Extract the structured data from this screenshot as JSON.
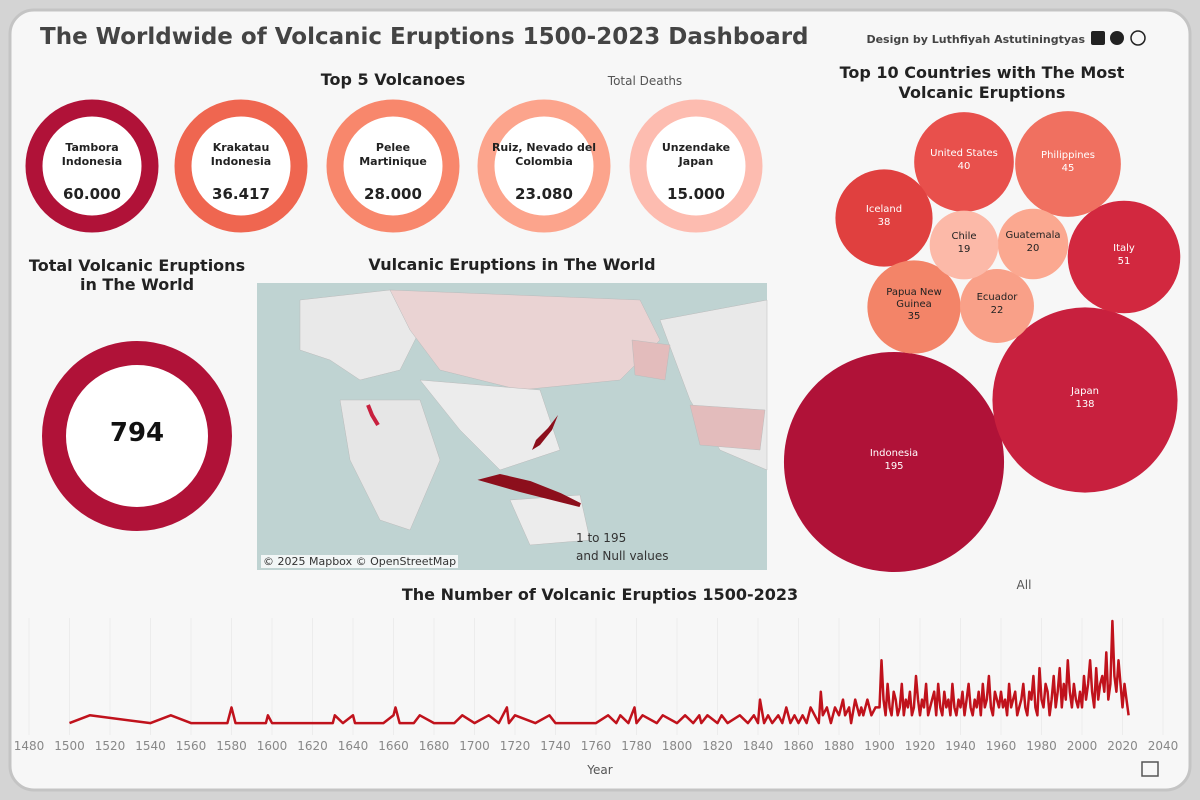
{
  "header": {
    "title": "The Worldwide of Volcanic Eruptions 1500-2023 Dashboard",
    "credit": "Design by Luthfiyah Astutiningtyas"
  },
  "chart_data": [
    {
      "type": "donut-cards",
      "title": "Top 5 Volcanoes",
      "subtitle": "Total Deaths",
      "categories": [
        "Tambora",
        "Krakatau",
        "Pelee",
        "Ruiz, Nevado del",
        "Unzendake"
      ],
      "countries": [
        "Indonesia",
        "Indonesia",
        "Martinique",
        "Colombia",
        "Japan"
      ],
      "values": [
        60000,
        36417,
        28000,
        23080,
        15000
      ],
      "value_labels": [
        "60.000",
        "36.417",
        "28.000",
        "23.080",
        "15.000"
      ],
      "colors": [
        "#b01238",
        "#ef6650",
        "#f8876c",
        "#fca48c",
        "#fdbcb0"
      ]
    },
    {
      "type": "kpi",
      "title": "Total Volcanic Eruptions in The World",
      "value": 794,
      "color": "#b01238"
    },
    {
      "type": "map",
      "title": "Vulcanic Eruptions in The World",
      "legend_labels": [
        "1 to 195",
        "and Null values"
      ],
      "attribution": "© 2025 Mapbox © OpenStreetMap"
    },
    {
      "type": "bubble",
      "title": "Top 10 Countries with The Most Volcanic Eruptions",
      "categories": [
        "Indonesia",
        "Japan",
        "Italy",
        "Philippines",
        "United States",
        "Iceland",
        "Papua New Guinea",
        "Ecuador",
        "Guatemala",
        "Chile"
      ],
      "values": [
        195,
        138,
        51,
        45,
        40,
        38,
        35,
        22,
        20,
        19
      ],
      "colors": [
        "#b01238",
        "#c8203e",
        "#d2283f",
        "#f07060",
        "#e8504c",
        "#e0403f",
        "#f38468",
        "#f9a088",
        "#fba890",
        "#fcb9a8"
      ]
    },
    {
      "type": "line",
      "title": "The Number of Volcanic Eruptios 1500-2023",
      "x_label": "Year",
      "filter_label": "All",
      "color": "#c0121c",
      "xlim": [
        1480,
        2040
      ],
      "xticks": [
        1480,
        1500,
        1520,
        1540,
        1560,
        1580,
        1600,
        1620,
        1640,
        1660,
        1680,
        1700,
        1720,
        1740,
        1760,
        1780,
        1800,
        1820,
        1840,
        1860,
        1880,
        1900,
        1920,
        1940,
        1960,
        1980,
        2000,
        2020,
        2040
      ],
      "ylim": [
        0,
        14
      ],
      "x": [
        1500,
        1510,
        1540,
        1550,
        1560,
        1570,
        1578,
        1580,
        1582,
        1595,
        1597,
        1598,
        1600,
        1620,
        1630,
        1631,
        1635,
        1640,
        1641,
        1650,
        1655,
        1660,
        1661,
        1663,
        1670,
        1673,
        1680,
        1690,
        1694,
        1700,
        1707,
        1712,
        1716,
        1717,
        1720,
        1730,
        1737,
        1740,
        1750,
        1760,
        1766,
        1770,
        1772,
        1776,
        1779,
        1780,
        1783,
        1790,
        1793,
        1800,
        1804,
        1808,
        1811,
        1812,
        1815,
        1820,
        1822,
        1825,
        1831,
        1835,
        1838,
        1840,
        1841,
        1843,
        1845,
        1847,
        1850,
        1852,
        1854,
        1856,
        1858,
        1860,
        1862,
        1864,
        1866,
        1868,
        1870,
        1871,
        1872,
        1874,
        1876,
        1878,
        1880,
        1882,
        1883,
        1885,
        1886,
        1888,
        1890,
        1891,
        1892,
        1894,
        1896,
        1898,
        1900,
        1901,
        1902,
        1903,
        1904,
        1905,
        1906,
        1907,
        1908,
        1909,
        1910,
        1911,
        1912,
        1913,
        1914,
        1915,
        1916,
        1917,
        1918,
        1919,
        1920,
        1921,
        1922,
        1923,
        1924,
        1925,
        1926,
        1927,
        1928,
        1929,
        1930,
        1931,
        1932,
        1933,
        1934,
        1935,
        1936,
        1937,
        1938,
        1939,
        1940,
        1941,
        1942,
        1943,
        1944,
        1945,
        1946,
        1947,
        1948,
        1949,
        1950,
        1951,
        1952,
        1953,
        1954,
        1955,
        1956,
        1957,
        1958,
        1959,
        1960,
        1961,
        1962,
        1963,
        1964,
        1965,
        1966,
        1967,
        1968,
        1969,
        1970,
        1971,
        1972,
        1973,
        1974,
        1975,
        1976,
        1977,
        1978,
        1979,
        1980,
        1981,
        1982,
        1983,
        1984,
        1985,
        1986,
        1987,
        1988,
        1989,
        1990,
        1991,
        1992,
        1993,
        1994,
        1995,
        1996,
        1997,
        1998,
        1999,
        2000,
        2001,
        2002,
        2003,
        2004,
        2005,
        2006,
        2007,
        2008,
        2009,
        2010,
        2011,
        2012,
        2013,
        2014,
        2015,
        2016,
        2017,
        2018,
        2019,
        2020,
        2021,
        2022,
        2023
      ],
      "values": [
        1,
        2,
        1,
        2,
        1,
        1,
        1,
        3,
        1,
        1,
        1,
        2,
        1,
        1,
        1,
        2,
        1,
        2,
        1,
        1,
        1,
        2,
        3,
        1,
        1,
        2,
        1,
        1,
        2,
        1,
        2,
        1,
        3,
        1,
        2,
        1,
        2,
        1,
        1,
        1,
        2,
        1,
        2,
        1,
        3,
        1,
        2,
        1,
        2,
        1,
        2,
        1,
        2,
        1,
        2,
        1,
        2,
        1,
        2,
        1,
        2,
        1,
        4,
        1,
        2,
        1,
        2,
        1,
        3,
        1,
        2,
        1,
        2,
        1,
        3,
        2,
        1,
        5,
        2,
        3,
        1,
        3,
        2,
        4,
        2,
        3,
        1,
        4,
        2,
        3,
        2,
        4,
        2,
        3,
        3,
        9,
        4,
        2,
        6,
        3,
        2,
        5,
        4,
        2,
        3,
        6,
        2,
        4,
        3,
        5,
        2,
        3,
        7,
        4,
        2,
        4,
        3,
        6,
        2,
        3,
        4,
        5,
        2,
        6,
        3,
        2,
        5,
        3,
        4,
        2,
        6,
        3,
        2,
        4,
        3,
        5,
        2,
        4,
        6,
        3,
        2,
        4,
        3,
        5,
        2,
        6,
        3,
        4,
        7,
        3,
        2,
        5,
        4,
        3,
        5,
        3,
        4,
        2,
        6,
        3,
        4,
        5,
        2,
        3,
        4,
        6,
        3,
        2,
        5,
        4,
        7,
        3,
        2,
        8,
        4,
        3,
        6,
        5,
        2,
        4,
        7,
        3,
        5,
        8,
        3,
        6,
        4,
        9,
        5,
        3,
        6,
        4,
        3,
        5,
        3,
        7,
        4,
        6,
        9,
        5,
        3,
        8,
        4,
        6,
        7,
        5,
        10,
        4,
        6,
        14,
        7,
        5,
        9,
        6,
        3,
        6,
        4,
        2
      ]
    }
  ]
}
